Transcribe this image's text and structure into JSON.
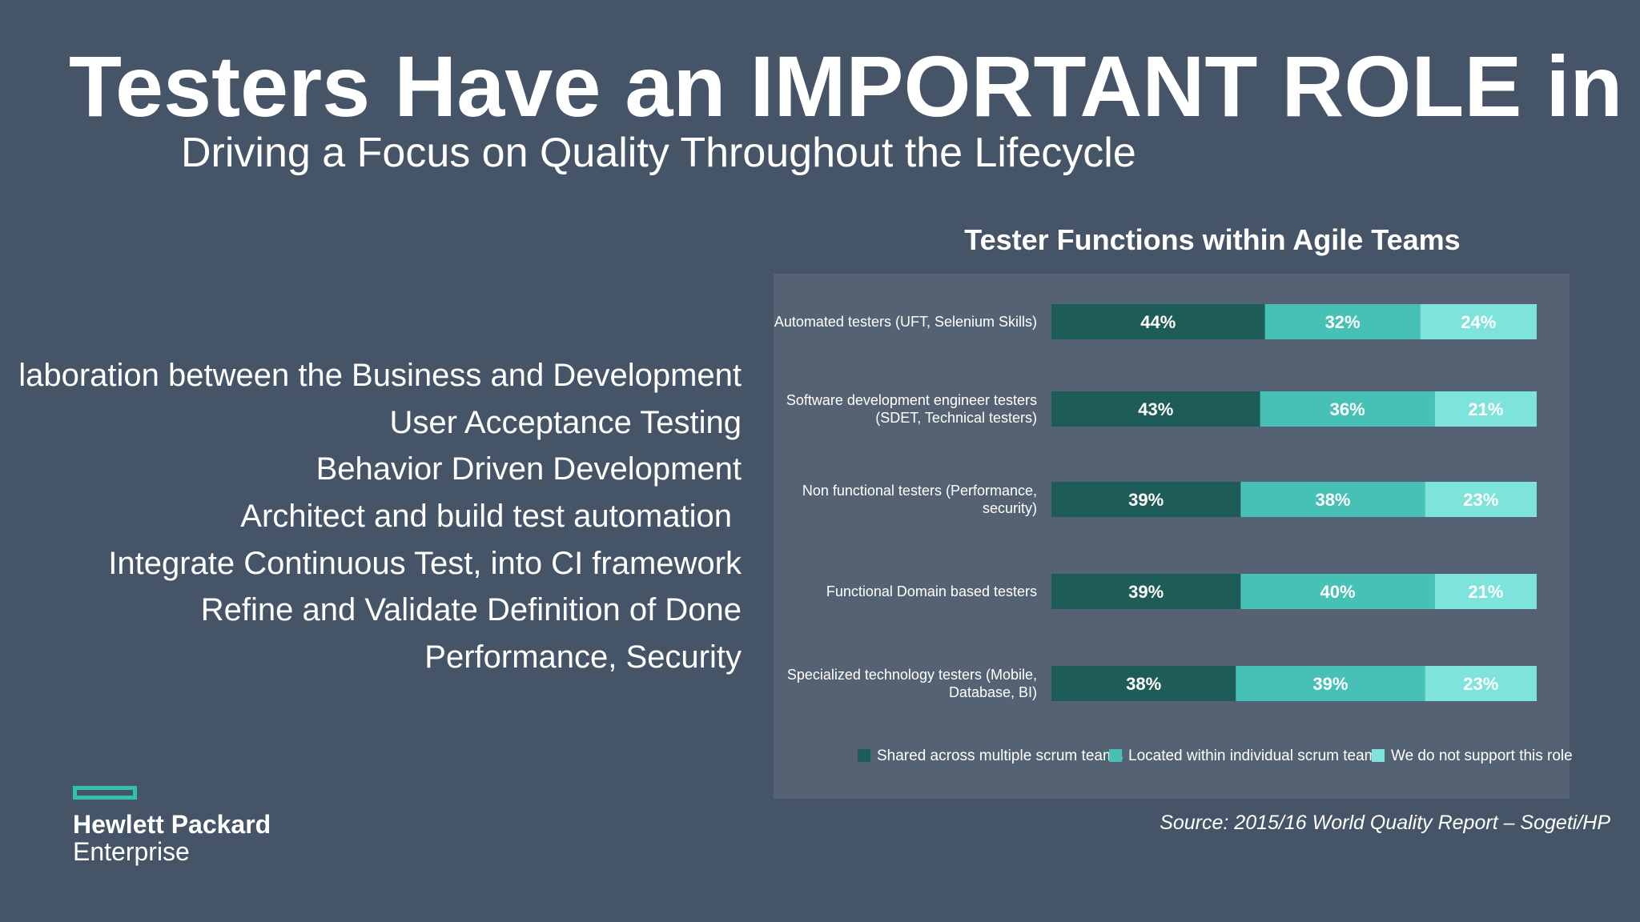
{
  "slide": {
    "title": "Testers Have an IMPORTANT ROLE in A",
    "subtitle": "Driving a Focus on Quality Throughout the Lifecycle",
    "bullets": [
      "laboration between the Business and Development",
      "User Acceptance Testing",
      "Behavior Driven Development",
      "Architect and build test automation",
      "Integrate Continuous Test, into CI framework",
      "Refine and Validate Definition of Done",
      "Performance, Security"
    ],
    "source": "Source: 2015/16 World Quality Report – Sogeti/HP",
    "logo": {
      "line1": "Hewlett Packard",
      "line2": "Enterprise",
      "accent": "#2fc2b0"
    }
  },
  "chart_data": {
    "type": "bar",
    "orientation": "horizontal",
    "stacked": true,
    "title": "Tester Functions within Agile Teams",
    "xlabel": "",
    "ylabel": "",
    "xlim": [
      0,
      100
    ],
    "categories": [
      [
        "Automated testers (UFT, Selenium Skills)"
      ],
      [
        "Software development engineer testers",
        "(SDET, Technical testers)"
      ],
      [
        "Non functional testers (Performance,",
        "security)"
      ],
      [
        "Functional Domain based testers"
      ],
      [
        "Specialized technology testers (Mobile,",
        "Database, BI)"
      ]
    ],
    "series": [
      {
        "name": "Shared across multiple scrum teams",
        "color": "#1e5c57",
        "values": [
          44,
          43,
          39,
          39,
          38
        ]
      },
      {
        "name": "Located within individual scrum teams",
        "color": "#47c0b6",
        "values": [
          32,
          36,
          38,
          40,
          39
        ]
      },
      {
        "name": "We do not support this role",
        "color": "#7ee3da",
        "values": [
          24,
          21,
          23,
          21,
          23
        ]
      }
    ],
    "value_format": "{v}%",
    "legend": "bottom",
    "grid": false
  }
}
